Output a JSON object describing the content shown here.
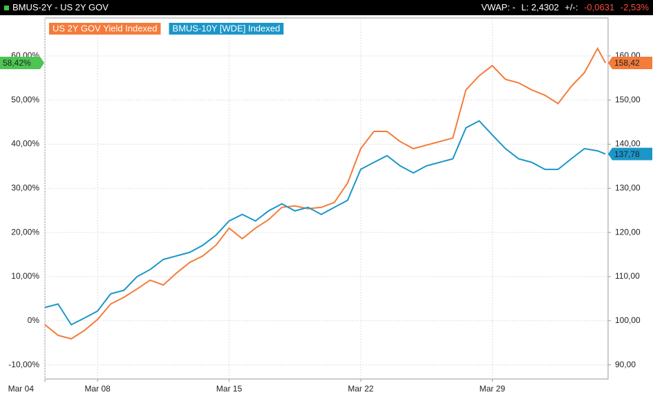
{
  "header": {
    "title": "BMUS-2Y - US 2Y GOV",
    "stats": [
      "VWAP: -",
      "L: 2,4302",
      "+/-:",
      "-0,0631",
      "-2,53%"
    ]
  },
  "chart_data": {
    "type": "line",
    "x": [
      0,
      0.5,
      1,
      1.5,
      2,
      2.5,
      3,
      3.5,
      4,
      4.5,
      5,
      5.5,
      6,
      6.5,
      7,
      7.5,
      8,
      8.5,
      9,
      9.5,
      10,
      10.5,
      11,
      11.5,
      12,
      12.5,
      13,
      13.5,
      14,
      14.5,
      15,
      15.5,
      16,
      16.5,
      17,
      17.5,
      18,
      18.5,
      19,
      19.5,
      20,
      20.5,
      21,
      21.3
    ],
    "xlim": [
      0,
      21.4
    ],
    "xticks": [
      {
        "value": 0,
        "label": "Mar 04"
      },
      {
        "value": 2,
        "label": "Mar 08"
      },
      {
        "value": 7,
        "label": "Mar 15"
      },
      {
        "value": 12,
        "label": "Mar 22"
      },
      {
        "value": 17,
        "label": "Mar 29"
      }
    ],
    "ylim": [
      -13.2,
      68.6
    ],
    "yticks": [
      {
        "value": -10,
        "label": "-10,00%"
      },
      {
        "value": 0,
        "label": "0%"
      },
      {
        "value": 10,
        "label": "10,00%"
      },
      {
        "value": 20,
        "label": "20,00%"
      },
      {
        "value": 30,
        "label": "30,00%"
      },
      {
        "value": 40,
        "label": "40,00%"
      },
      {
        "value": 50,
        "label": "50,00%"
      },
      {
        "value": 60,
        "label": "60,00%"
      }
    ],
    "y2lim": [
      86.8,
      168.6
    ],
    "y2ticks": [
      {
        "value": 90,
        "label": "90,00"
      },
      {
        "value": 100,
        "label": "100,00"
      },
      {
        "value": 110,
        "label": "110,00"
      },
      {
        "value": 120,
        "label": "120,00"
      },
      {
        "value": 130,
        "label": "130,00"
      },
      {
        "value": 140,
        "label": "140,00"
      },
      {
        "value": 150,
        "label": "150,00"
      },
      {
        "value": 160,
        "label": "160,00"
      }
    ],
    "grid": true,
    "y_marker": {
      "value": 58.42,
      "label": "58,42%",
      "color": "#4cc552"
    },
    "series": [
      {
        "name": "US 2Y GOV Yield Indexed",
        "color": "#f47b3a",
        "axis": "y2",
        "last_label": "158,42",
        "values": [
          99.1,
          96.7,
          95.9,
          97.8,
          100.3,
          103.8,
          105.3,
          107.2,
          109.2,
          108.1,
          110.8,
          113.2,
          114.7,
          117.1,
          121.0,
          118.6,
          121.0,
          122.9,
          125.7,
          126.0,
          125.4,
          125.7,
          126.8,
          131.2,
          139.0,
          142.9,
          142.9,
          140.6,
          139.0,
          139.8,
          140.6,
          141.4,
          152.3,
          155.5,
          157.8,
          154.7,
          153.9,
          152.3,
          151.1,
          149.2,
          153.1,
          156.2,
          161.7,
          158.42
        ]
      },
      {
        "name": "BMUS-10Y [WDE] Indexed",
        "color": "#1a96c8",
        "axis": "y2",
        "last_label": "137,78",
        "values": [
          103.0,
          103.8,
          99.1,
          100.6,
          102.2,
          106.1,
          106.9,
          110.0,
          111.6,
          113.9,
          114.7,
          115.5,
          117.1,
          119.4,
          122.6,
          124.1,
          122.6,
          124.9,
          126.5,
          124.9,
          125.7,
          124.1,
          125.7,
          127.3,
          134.3,
          135.9,
          137.4,
          135.1,
          133.5,
          135.1,
          135.9,
          136.7,
          143.7,
          145.3,
          142.1,
          139.0,
          136.7,
          135.9,
          134.3,
          134.3,
          136.7,
          139.0,
          138.5,
          137.78
        ]
      }
    ]
  }
}
